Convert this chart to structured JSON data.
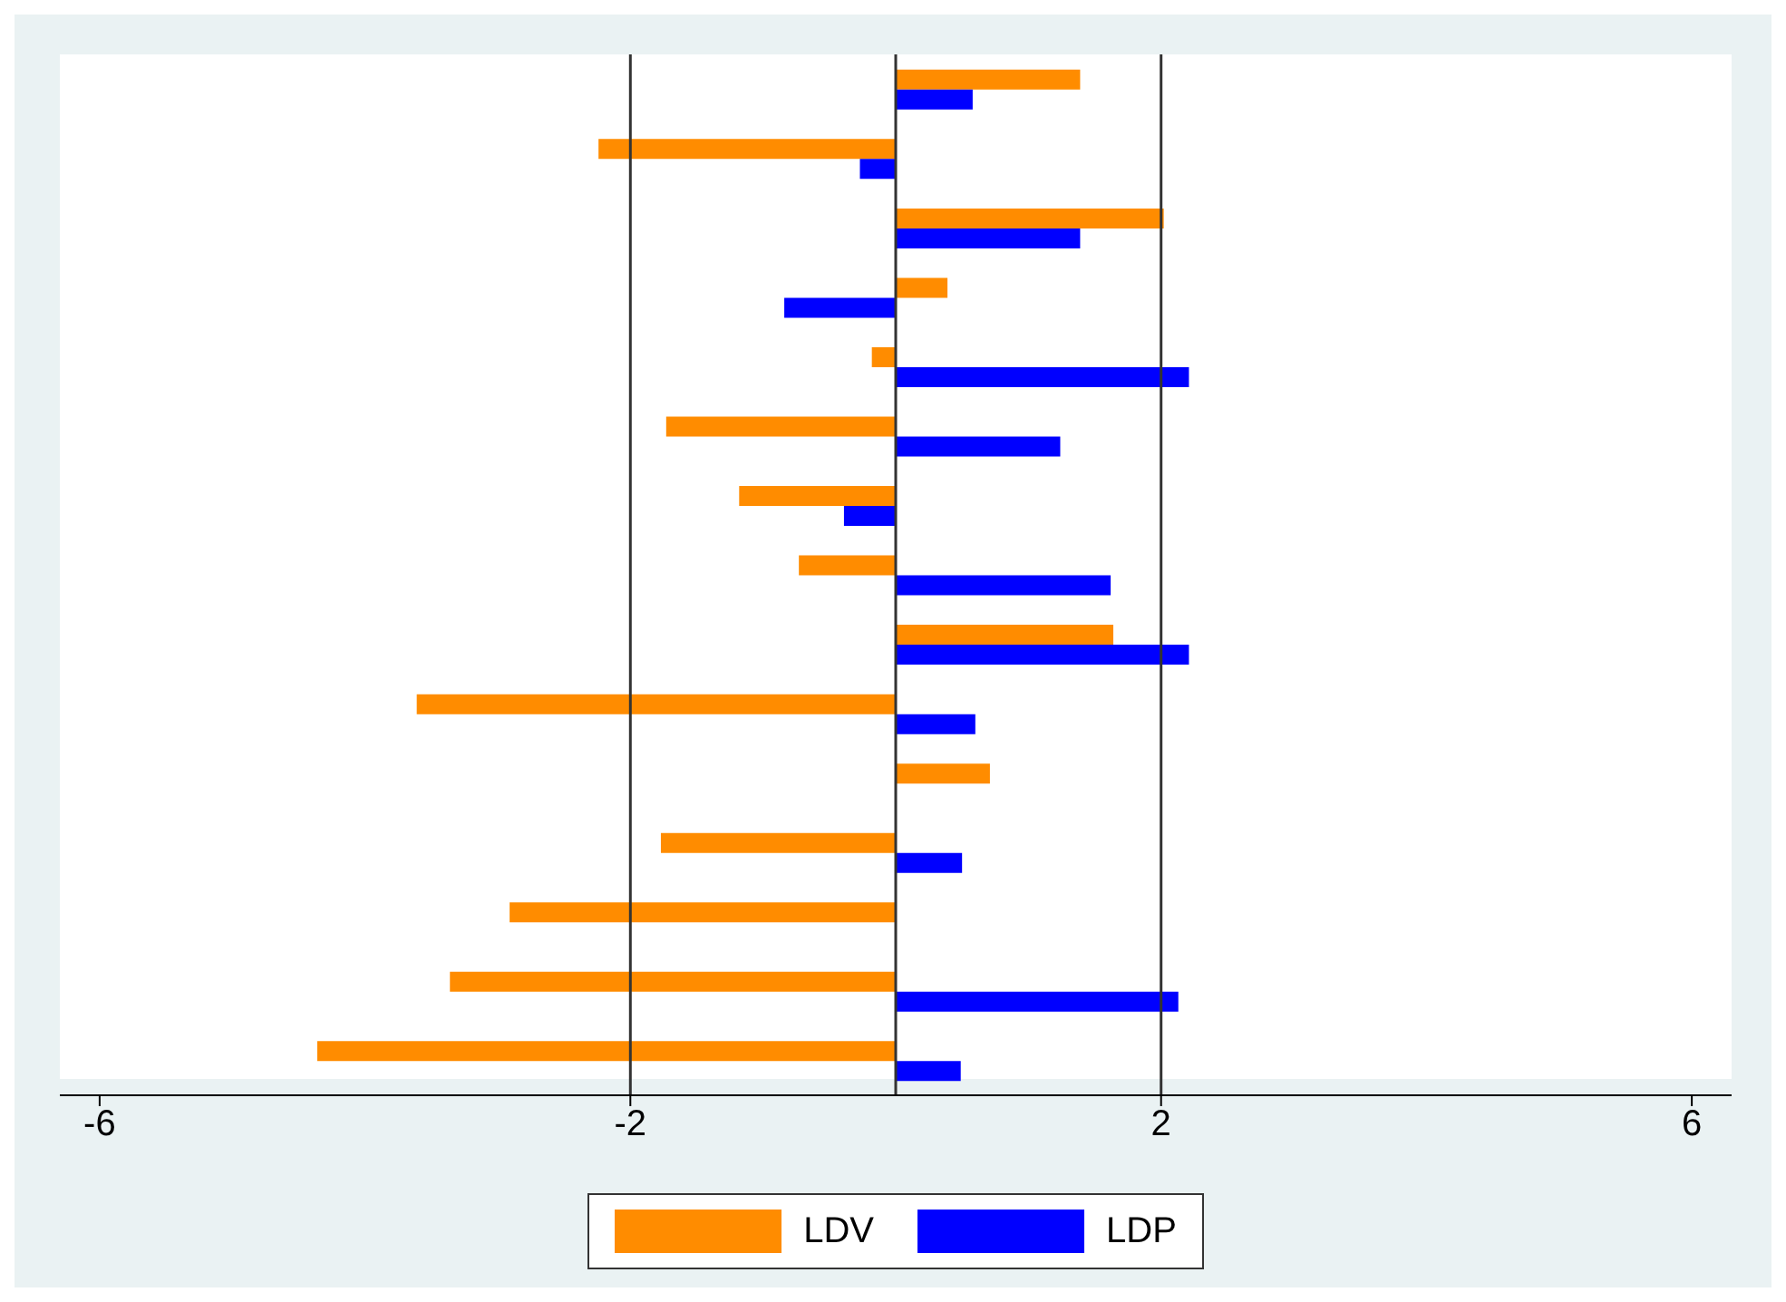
{
  "chart_data": {
    "type": "bar",
    "orientation": "horizontal",
    "categories": [
      null,
      null,
      null,
      null,
      null,
      null,
      null,
      null,
      null,
      null,
      null,
      null,
      null,
      null,
      null
    ],
    "series": [
      {
        "name": "LDV",
        "color": "#ff8c00",
        "values": [
          1.39,
          -2.24,
          2.02,
          0.39,
          -0.18,
          -1.73,
          -1.18,
          -0.73,
          1.64,
          -3.61,
          0.71,
          -1.77,
          -2.91,
          -3.36,
          -4.36
        ]
      },
      {
        "name": "LDP",
        "color": "#0000ff",
        "values": [
          0.58,
          -0.27,
          1.39,
          -0.84,
          2.21,
          1.24,
          -0.39,
          1.62,
          2.21,
          0.6,
          null,
          0.5,
          null,
          2.13,
          0.49
        ]
      }
    ],
    "xlim": [
      -6.3,
      6.3
    ],
    "xticks": [
      -6,
      -2,
      2,
      6
    ],
    "grid": false,
    "ref_lines": [
      {
        "axis": "x",
        "value": -2
      },
      {
        "axis": "x",
        "value": 0
      },
      {
        "axis": "x",
        "value": 2
      }
    ],
    "legend": "bottom"
  }
}
